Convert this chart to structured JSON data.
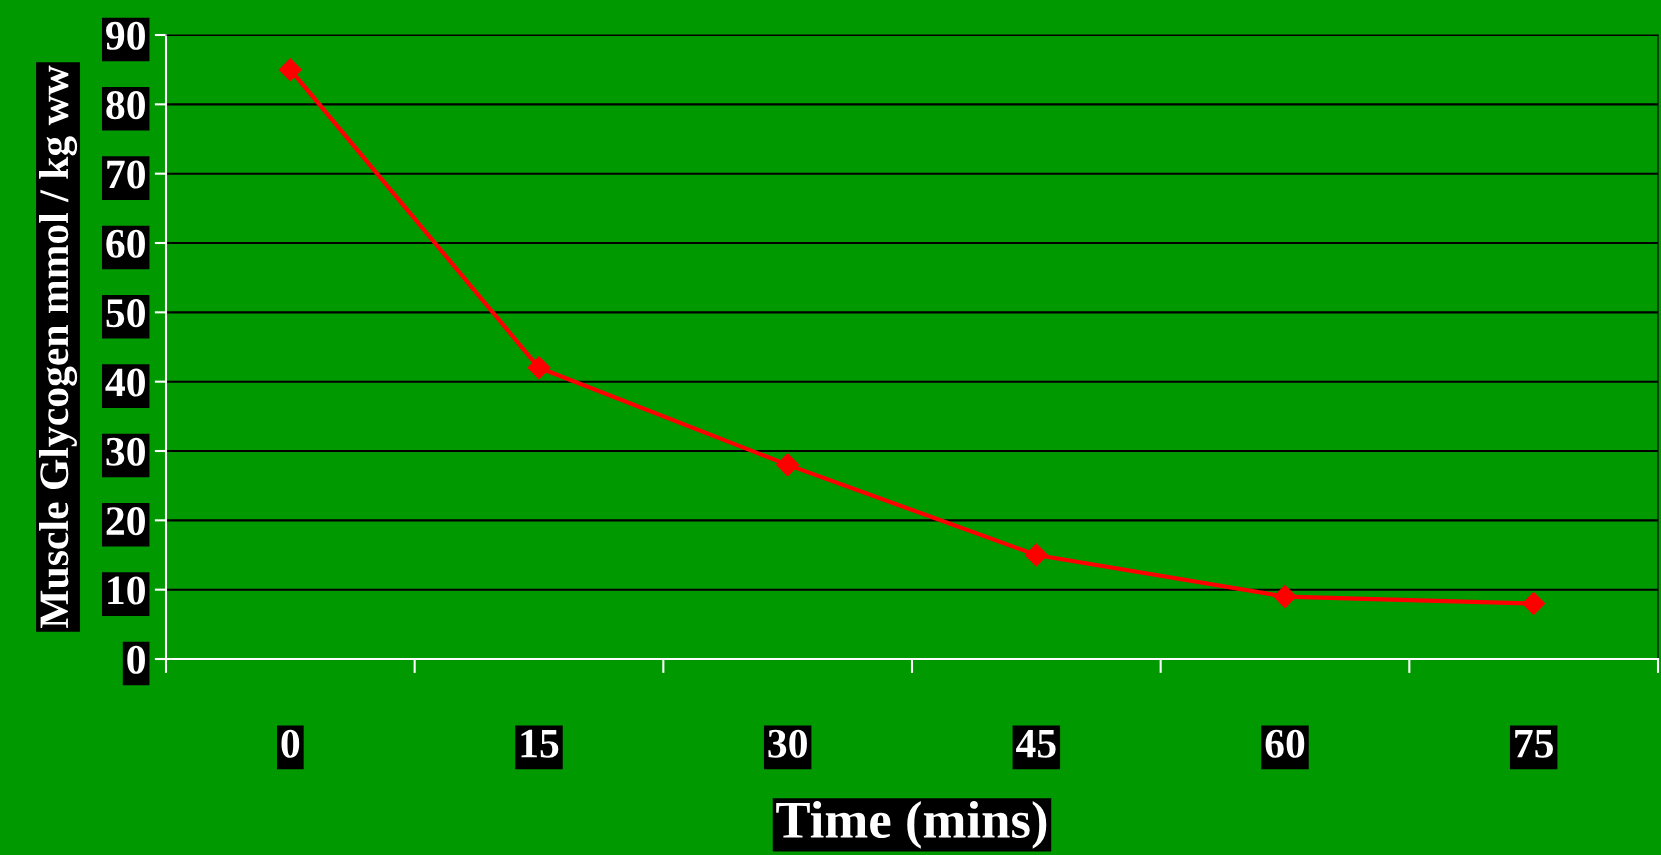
{
  "chart_data": {
    "type": "line",
    "xlabel": "Time (mins)",
    "ylabel": "Muscle Glycogen mmol / kg ww",
    "categories": [
      "0",
      "15",
      "30",
      "45",
      "60",
      "75"
    ],
    "series": [
      {
        "color": "#ff0000",
        "values": [
          85,
          42,
          28,
          15,
          9,
          8
        ]
      }
    ],
    "ylim": [
      0,
      90
    ],
    "yticks": [
      0,
      10,
      20,
      30,
      40,
      50,
      60,
      70,
      80,
      90
    ],
    "grid": "y",
    "marker": "diamond",
    "line_style": "solid"
  }
}
